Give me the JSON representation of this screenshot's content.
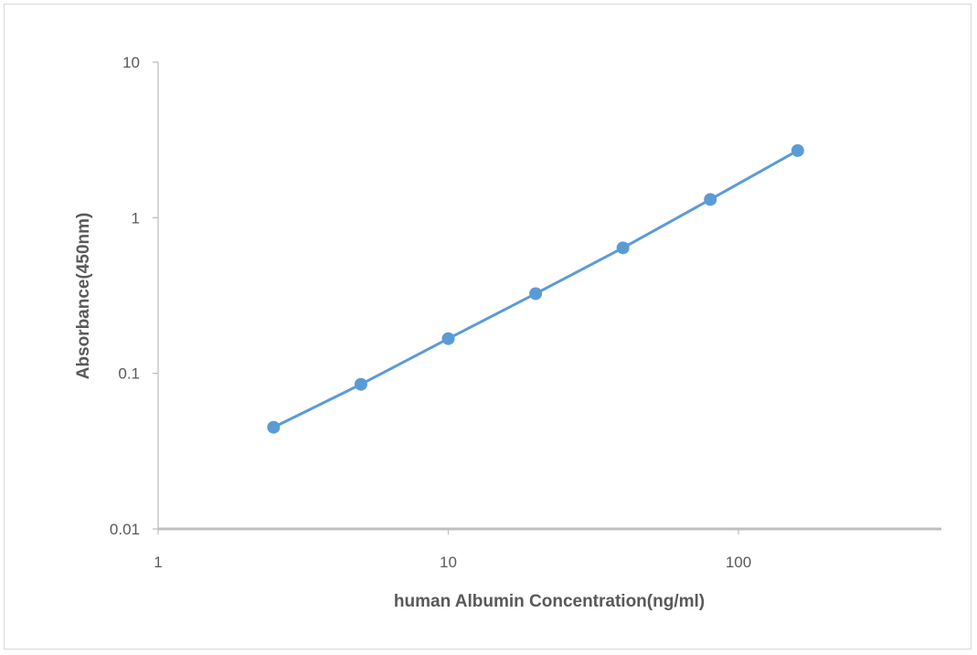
{
  "chart_data": {
    "type": "scatter",
    "title": "",
    "xlabel": "human Albumin Concentration(ng/ml)",
    "ylabel": "Absorbance(450nm)",
    "x_scale": "log",
    "y_scale": "log",
    "xlim": [
      1,
      400
    ],
    "ylim": [
      0.01,
      10
    ],
    "x_ticks": [
      1,
      10,
      100
    ],
    "x_tick_labels": [
      "1",
      "10",
      "100"
    ],
    "y_ticks": [
      0.01,
      0.1,
      1,
      10
    ],
    "y_tick_labels": [
      "0.01",
      "0.1",
      "1",
      "10"
    ],
    "grid": false,
    "legend": "none",
    "series": [
      {
        "x": [
          2.5,
          5,
          10,
          20,
          40,
          80,
          160
        ],
        "y": [
          0.045,
          0.085,
          0.167,
          0.325,
          0.64,
          1.31,
          2.7
        ],
        "color": "#5b9bd5",
        "line": true,
        "markers": true
      }
    ]
  }
}
